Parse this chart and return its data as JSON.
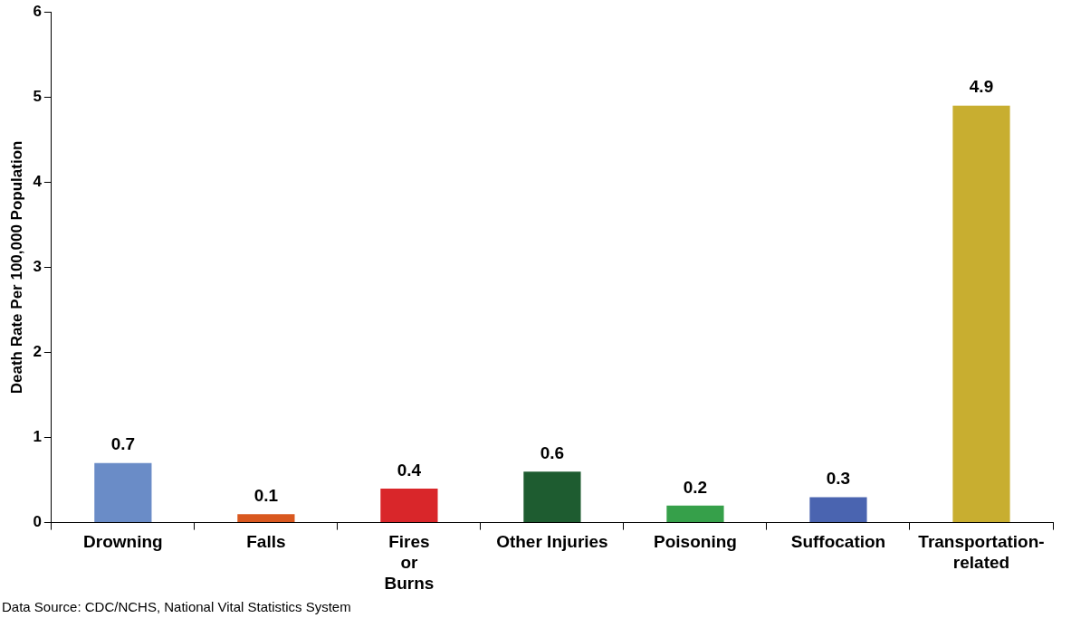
{
  "chart_data": {
    "type": "bar",
    "ylabel": "Death Rate Per 100,000 Population",
    "categories": [
      "Drowning",
      "Falls",
      "Fires or Burns",
      "Other Injuries",
      "Poisoning",
      "Suffocation",
      "Transportation-related"
    ],
    "values": [
      0.7,
      0.1,
      0.4,
      0.6,
      0.2,
      0.3,
      4.9
    ],
    "colors": [
      "#6a8cc7",
      "#d9581f",
      "#d9262a",
      "#1e5c30",
      "#36a04a",
      "#4a64b0",
      "#c8ae30"
    ],
    "ylim": [
      0,
      6
    ],
    "yticks": [
      0,
      1,
      2,
      3,
      4,
      5,
      6
    ],
    "grid": false,
    "legend": false,
    "data_labels": true,
    "annotations": [
      "Data Source: CDC/NCHS, National Vital Statistics System"
    ]
  }
}
